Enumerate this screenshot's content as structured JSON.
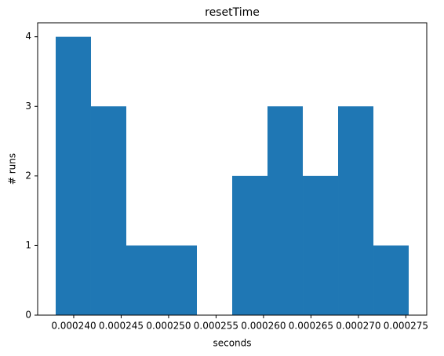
{
  "chart_data": {
    "type": "histogram",
    "title": "resetTime",
    "x_label": "seconds",
    "y_label": "# runs",
    "bins": [
      0.0002381,
      0.00024182,
      0.00024554,
      0.00024926,
      0.00025298,
      0.0002567,
      0.00026042,
      0.00026414,
      0.00026786,
      0.00027158,
      0.0002753
    ],
    "counts": [
      4,
      3,
      1,
      1,
      0,
      2,
      3,
      2,
      3,
      1
    ],
    "color": "#1f77b4",
    "xlim": [
      0.0002362,
      0.0002772
    ],
    "xticks": [
      {
        "value": 0.00024,
        "label": "0.000240"
      },
      {
        "value": 0.000245,
        "label": "0.000245"
      },
      {
        "value": 0.00025,
        "label": "0.000250"
      },
      {
        "value": 0.000255,
        "label": "0.000255"
      },
      {
        "value": 0.00026,
        "label": "0.000260"
      },
      {
        "value": 0.000265,
        "label": "0.000265"
      },
      {
        "value": 0.00027,
        "label": "0.000270"
      },
      {
        "value": 0.000275,
        "label": "0.000275"
      }
    ],
    "ylim": [
      0,
      4.2
    ],
    "yticks": [
      0,
      1,
      2,
      3,
      4
    ],
    "grid": false
  }
}
